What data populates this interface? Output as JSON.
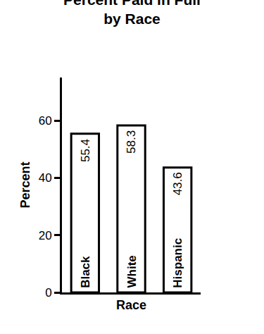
{
  "chart_data": {
    "type": "bar",
    "title": "Percent Paid in Full\nby Race",
    "x_label": "Race",
    "y_label": "Percent",
    "categories": [
      "Black",
      "White",
      "Hispanic"
    ],
    "values": [
      55.4,
      58.3,
      43.6
    ],
    "color": "#ffffff",
    "ylim": [
      0,
      75
    ],
    "yticks": [
      0,
      20,
      40,
      60
    ],
    "grid": false,
    "data_labels": true,
    "tick_labels": "y"
  }
}
